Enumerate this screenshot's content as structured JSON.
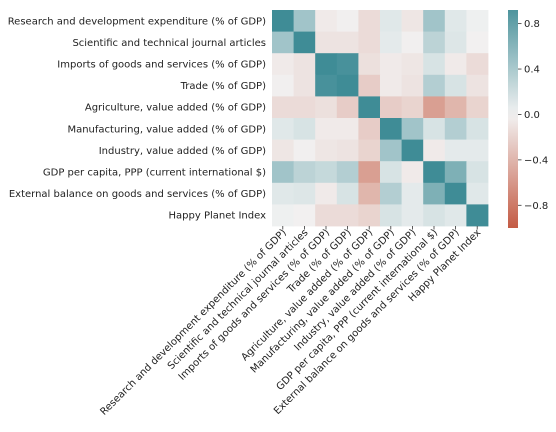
{
  "chart_data": {
    "type": "heatmap",
    "rows": [
      "Research and development expenditure (% of GDP)",
      "Scientific and technical journal articles",
      "Imports of goods and services (% of GDP)",
      "Trade (% of GDP)",
      "Agriculture, value added (% of GDP)",
      "Manufacturing, value added (% of GDP)",
      "Industry, value added (% of GDP)",
      "GDP per capita, PPP (current international $)",
      "External balance on goods and services (% of GDP)",
      "Happy Planet Index"
    ],
    "columns": [
      "Research and development expenditure (% of GDP)",
      "Scientific and technical journal articles",
      "Imports of goods and services (% of GDP)",
      "Trade (% of GDP)",
      "Agriculture, value added (% of GDP)",
      "Manufacturing, value added (% of GDP)",
      "Industry, value added (% of GDP)",
      "GDP per capita, PPP (current international $)",
      "External balance on goods and services (% of GDP)",
      "Happy Planet Index"
    ],
    "values": [
      [
        1.0,
        0.45,
        -0.05,
        -0.02,
        -0.15,
        0.1,
        -0.08,
        0.45,
        0.1,
        0.02
      ],
      [
        0.45,
        1.0,
        -0.1,
        -0.1,
        -0.15,
        0.08,
        -0.02,
        0.3,
        0.12,
        -0.01
      ],
      [
        -0.05,
        -0.1,
        1.0,
        0.95,
        -0.12,
        -0.05,
        -0.08,
        0.15,
        -0.05,
        -0.15
      ],
      [
        -0.02,
        -0.1,
        0.95,
        1.0,
        -0.25,
        -0.05,
        -0.1,
        0.35,
        0.15,
        -0.1
      ],
      [
        -0.15,
        -0.15,
        -0.12,
        -0.25,
        1.0,
        -0.25,
        -0.2,
        -0.55,
        -0.4,
        -0.2
      ],
      [
        0.1,
        0.15,
        -0.05,
        -0.05,
        -0.25,
        1.0,
        0.45,
        0.15,
        0.35,
        0.15
      ],
      [
        -0.08,
        -0.02,
        -0.08,
        -0.1,
        -0.2,
        0.45,
        1.0,
        -0.05,
        0.08,
        0.08
      ],
      [
        0.45,
        0.3,
        0.25,
        0.35,
        -0.55,
        0.15,
        -0.05,
        1.0,
        0.65,
        0.15
      ],
      [
        0.1,
        0.12,
        -0.05,
        0.15,
        -0.4,
        0.35,
        0.08,
        0.65,
        1.0,
        0.1
      ],
      [
        0.02,
        -0.01,
        -0.15,
        -0.15,
        -0.2,
        0.15,
        0.08,
        0.15,
        0.1,
        1.0
      ]
    ],
    "colorbar": {
      "range": [
        -1.0,
        0.92
      ],
      "ticks": [
        0.8,
        0.4,
        0.0,
        -0.4,
        -0.8
      ],
      "tick_labels": [
        "0.8",
        "0.4",
        "0.0",
        "−0.4",
        "−0.8"
      ],
      "colormap": "diverging (coral-white-teal)",
      "low_color": "#c45b44",
      "mid_color": "#f2f2f2",
      "high_color": "#3f8c96"
    },
    "grid": false,
    "legend": "colorbar-right"
  }
}
